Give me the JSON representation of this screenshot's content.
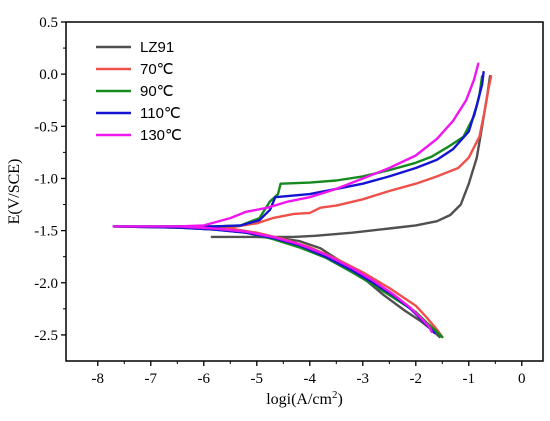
{
  "chart_data": {
    "type": "line",
    "xlabel": "logi(A/cm",
    "xlabel_sup": "2",
    "xlabel_end": ")",
    "ylabel": "E(V/SCE)",
    "xlim": [
      -8.6,
      0.4
    ],
    "ylim": [
      -2.75,
      0.5
    ],
    "x_ticks": [
      -8,
      -7,
      -6,
      -5,
      -4,
      -3,
      -2,
      -1,
      0
    ],
    "x_tick_labels": [
      "-8",
      "-7",
      "-6",
      "-5",
      "-4",
      "-3",
      "-2",
      "-1",
      "0"
    ],
    "y_ticks": [
      -2.5,
      -2.0,
      -1.5,
      -1.0,
      -0.5,
      0.0,
      0.5
    ],
    "y_tick_labels": [
      "-2.5",
      "-2.0",
      "-1.5",
      "-1.0",
      "-0.5",
      "0.0",
      "0.5"
    ],
    "grid": false,
    "legend_position": "top-left",
    "series": [
      {
        "name": "LZ91",
        "color": "#505050",
        "points": [
          [
            -5.85,
            -1.56
          ],
          [
            -5.0,
            -1.56
          ],
          [
            -4.3,
            -1.56
          ],
          [
            -3.9,
            -1.55
          ],
          [
            -3.2,
            -1.52
          ],
          [
            -2.5,
            -1.48
          ],
          [
            -2.0,
            -1.45
          ],
          [
            -1.6,
            -1.41
          ],
          [
            -1.35,
            -1.35
          ],
          [
            -1.15,
            -1.25
          ],
          [
            -1.0,
            -1.05
          ],
          [
            -0.85,
            -0.8
          ],
          [
            -0.75,
            -0.5
          ],
          [
            -0.65,
            -0.2
          ],
          [
            -0.6,
            -0.02
          ],
          null,
          [
            -5.85,
            -1.56
          ],
          [
            -5.0,
            -1.56
          ],
          [
            -4.6,
            -1.57
          ],
          [
            -4.2,
            -1.6
          ],
          [
            -3.8,
            -1.67
          ],
          [
            -3.4,
            -1.8
          ],
          [
            -3.0,
            -1.95
          ],
          [
            -2.6,
            -2.12
          ],
          [
            -2.2,
            -2.27
          ],
          [
            -1.9,
            -2.37
          ],
          [
            -1.7,
            -2.45
          ],
          [
            -1.55,
            -2.52
          ]
        ]
      },
      {
        "name": "70℃",
        "color": "#f0504a",
        "points": [
          [
            -7.7,
            -1.46
          ],
          [
            -6.5,
            -1.47
          ],
          [
            -5.5,
            -1.47
          ],
          [
            -5.0,
            -1.43
          ],
          [
            -4.7,
            -1.38
          ],
          [
            -4.3,
            -1.34
          ],
          [
            -4.0,
            -1.33
          ],
          [
            -3.8,
            -1.28
          ],
          [
            -3.5,
            -1.26
          ],
          [
            -3.0,
            -1.2
          ],
          [
            -2.5,
            -1.12
          ],
          [
            -2.0,
            -1.05
          ],
          [
            -1.6,
            -0.98
          ],
          [
            -1.2,
            -0.9
          ],
          [
            -1.0,
            -0.8
          ],
          [
            -0.8,
            -0.6
          ],
          [
            -0.7,
            -0.35
          ],
          [
            -0.62,
            -0.12
          ],
          [
            -0.58,
            -0.02
          ],
          null,
          [
            -7.7,
            -1.46
          ],
          [
            -6.5,
            -1.47
          ],
          [
            -5.5,
            -1.48
          ],
          [
            -5.0,
            -1.52
          ],
          [
            -4.5,
            -1.58
          ],
          [
            -4.0,
            -1.66
          ],
          [
            -3.5,
            -1.77
          ],
          [
            -3.0,
            -1.9
          ],
          [
            -2.5,
            -2.05
          ],
          [
            -2.0,
            -2.22
          ],
          [
            -1.8,
            -2.33
          ],
          [
            -1.6,
            -2.45
          ],
          [
            -1.5,
            -2.52
          ]
        ]
      },
      {
        "name": "90℃",
        "color": "#158a1e",
        "points": [
          [
            -7.7,
            -1.46
          ],
          [
            -6.5,
            -1.46
          ],
          [
            -5.8,
            -1.46
          ],
          [
            -5.3,
            -1.45
          ],
          [
            -4.95,
            -1.38
          ],
          [
            -4.75,
            -1.22
          ],
          [
            -4.6,
            -1.15
          ],
          [
            -4.55,
            -1.05
          ],
          [
            -4.0,
            -1.04
          ],
          [
            -3.5,
            -1.02
          ],
          [
            -3.0,
            -0.98
          ],
          [
            -2.5,
            -0.92
          ],
          [
            -2.0,
            -0.85
          ],
          [
            -1.7,
            -0.79
          ],
          [
            -1.4,
            -0.7
          ],
          [
            -1.1,
            -0.6
          ],
          [
            -0.9,
            -0.4
          ],
          [
            -0.8,
            -0.2
          ],
          [
            -0.75,
            -0.02
          ],
          null,
          [
            -7.7,
            -1.46
          ],
          [
            -6.5,
            -1.47
          ],
          [
            -5.8,
            -1.49
          ],
          [
            -5.2,
            -1.52
          ],
          [
            -4.7,
            -1.58
          ],
          [
            -4.2,
            -1.66
          ],
          [
            -3.7,
            -1.76
          ],
          [
            -3.2,
            -1.9
          ],
          [
            -2.8,
            -2.02
          ],
          [
            -2.4,
            -2.15
          ],
          [
            -2.0,
            -2.28
          ],
          [
            -1.8,
            -2.38
          ],
          [
            -1.6,
            -2.47
          ],
          [
            -1.5,
            -2.52
          ]
        ]
      },
      {
        "name": "110℃",
        "color": "#1414d2",
        "points": [
          [
            -7.7,
            -1.46
          ],
          [
            -6.5,
            -1.46
          ],
          [
            -5.8,
            -1.46
          ],
          [
            -5.3,
            -1.45
          ],
          [
            -4.95,
            -1.4
          ],
          [
            -4.75,
            -1.3
          ],
          [
            -4.65,
            -1.18
          ],
          [
            -4.0,
            -1.15
          ],
          [
            -3.5,
            -1.1
          ],
          [
            -3.0,
            -1.05
          ],
          [
            -2.5,
            -0.98
          ],
          [
            -2.0,
            -0.9
          ],
          [
            -1.6,
            -0.82
          ],
          [
            -1.3,
            -0.72
          ],
          [
            -1.0,
            -0.55
          ],
          [
            -0.85,
            -0.3
          ],
          [
            -0.75,
            -0.1
          ],
          [
            -0.72,
            0.02
          ],
          null,
          [
            -7.7,
            -1.46
          ],
          [
            -6.5,
            -1.47
          ],
          [
            -5.8,
            -1.49
          ],
          [
            -5.2,
            -1.52
          ],
          [
            -4.7,
            -1.57
          ],
          [
            -4.2,
            -1.64
          ],
          [
            -3.7,
            -1.75
          ],
          [
            -3.2,
            -1.88
          ],
          [
            -2.8,
            -2.0
          ],
          [
            -2.4,
            -2.13
          ],
          [
            -2.1,
            -2.25
          ],
          [
            -1.9,
            -2.35
          ],
          [
            -1.75,
            -2.43
          ],
          [
            -1.65,
            -2.48
          ]
        ]
      },
      {
        "name": "130℃",
        "color": "#f016f0",
        "points": [
          [
            -7.7,
            -1.46
          ],
          [
            -6.5,
            -1.46
          ],
          [
            -6.0,
            -1.45
          ],
          [
            -5.5,
            -1.38
          ],
          [
            -5.2,
            -1.32
          ],
          [
            -4.8,
            -1.28
          ],
          [
            -4.4,
            -1.22
          ],
          [
            -4.0,
            -1.18
          ],
          [
            -3.5,
            -1.1
          ],
          [
            -3.0,
            -1.0
          ],
          [
            -2.5,
            -0.9
          ],
          [
            -2.0,
            -0.78
          ],
          [
            -1.6,
            -0.62
          ],
          [
            -1.3,
            -0.45
          ],
          [
            -1.05,
            -0.25
          ],
          [
            -0.9,
            -0.05
          ],
          [
            -0.82,
            0.1
          ],
          null,
          [
            -7.7,
            -1.46
          ],
          [
            -6.5,
            -1.46
          ],
          [
            -5.8,
            -1.48
          ],
          [
            -5.2,
            -1.51
          ],
          [
            -4.7,
            -1.56
          ],
          [
            -4.2,
            -1.63
          ],
          [
            -3.7,
            -1.73
          ],
          [
            -3.2,
            -1.86
          ],
          [
            -2.8,
            -1.98
          ],
          [
            -2.4,
            -2.12
          ],
          [
            -2.1,
            -2.24
          ],
          [
            -1.9,
            -2.34
          ],
          [
            -1.75,
            -2.42
          ],
          [
            -1.7,
            -2.47
          ]
        ]
      }
    ]
  }
}
